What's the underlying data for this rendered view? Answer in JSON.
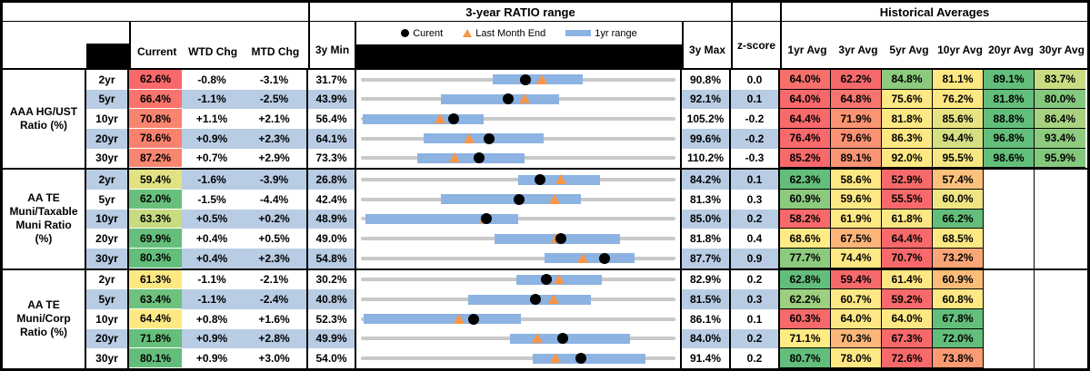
{
  "header": {
    "chart_title": "3-year RATIO range",
    "historical_title": "Historical Averages",
    "col_current": "Current",
    "col_wtd": "WTD Chg",
    "col_mtd": "MTD Chg",
    "col_min": "3y Min",
    "col_max": "3y Max",
    "col_z": "z-score",
    "legend_current": "Curent",
    "legend_last_month": "Last Month End",
    "legend_range": "1yr range",
    "avg_cols": [
      "1yr Avg",
      "3yr Avg",
      "5yr Avg",
      "10yr Avg",
      "20yr Avg",
      "30yr Avg"
    ]
  },
  "colors": {
    "stripe_blue": "#b8cce4",
    "range_bar_blue": "#8db3e2",
    "track_gray": "#c9c9c9",
    "triangle_orange": "#f79646",
    "dot_black": "#000000",
    "heat_red": "#f8696b",
    "heat_yellow": "#ffeb84",
    "heat_green": "#63be7b"
  },
  "groups": [
    {
      "label": "AAA HG/UST\nRatio (%)",
      "rows": [
        {
          "tenor": "2yr",
          "current": "62.6%",
          "cur_bg": "#f8696b",
          "wtd": "-0.8%",
          "mtd": "-3.1%",
          "min": "31.7%",
          "max": "90.8%",
          "z": "0.0",
          "bar_lo": 42,
          "bar_hi": 70.5,
          "dot": 52.3,
          "tri": 57.5,
          "avgs": [
            {
              "v": "64.0%",
              "bg": "#f8706c"
            },
            {
              "v": "62.2%",
              "bg": "#f8696b"
            },
            {
              "v": "84.8%",
              "bg": "#8cca7e"
            },
            {
              "v": "81.1%",
              "bg": "#fee883"
            },
            {
              "v": "89.1%",
              "bg": "#63be7b"
            },
            {
              "v": "83.7%",
              "bg": "#c9dc81"
            }
          ]
        },
        {
          "tenor": "5yr",
          "current": "66.4%",
          "cur_bg": "#f8746d",
          "wtd": "-1.1%",
          "mtd": "-2.5%",
          "min": "43.9%",
          "max": "92.1%",
          "z": "0.1",
          "bar_lo": 25.5,
          "bar_hi": 63,
          "dot": 46.7,
          "tri": 51.9,
          "avgs": [
            {
              "v": "64.0%",
              "bg": "#f8696b"
            },
            {
              "v": "64.8%",
              "bg": "#f8746d"
            },
            {
              "v": "75.6%",
              "bg": "#fee883"
            },
            {
              "v": "76.2%",
              "bg": "#fce883"
            },
            {
              "v": "81.8%",
              "bg": "#63be7b"
            },
            {
              "v": "80.0%",
              "bg": "#84c87d"
            }
          ]
        },
        {
          "tenor": "10yr",
          "current": "70.8%",
          "cur_bg": "#f9846f",
          "wtd": "+1.1%",
          "mtd": "+2.1%",
          "min": "56.4%",
          "max": "105.2%",
          "z": "-0.2",
          "bar_lo": 0.5,
          "bar_hi": 39,
          "dot": 29.5,
          "tri": 25.2,
          "avgs": [
            {
              "v": "64.4%",
              "bg": "#f8696b"
            },
            {
              "v": "71.9%",
              "bg": "#fa9473"
            },
            {
              "v": "81.8%",
              "bg": "#fee883"
            },
            {
              "v": "85.6%",
              "bg": "#e7e382"
            },
            {
              "v": "88.8%",
              "bg": "#63be7b"
            },
            {
              "v": "86.4%",
              "bg": "#a9d27f"
            }
          ]
        },
        {
          "tenor": "20yr",
          "current": "78.6%",
          "cur_bg": "#f9826f",
          "wtd": "+0.9%",
          "mtd": "+2.3%",
          "min": "64.1%",
          "max": "99.6%",
          "z": "-0.2",
          "bar_lo": 20,
          "bar_hi": 58,
          "dot": 40.8,
          "tri": 34.4,
          "avgs": [
            {
              "v": "76.4%",
              "bg": "#f8696b"
            },
            {
              "v": "79.6%",
              "bg": "#fa9172"
            },
            {
              "v": "86.3%",
              "bg": "#fee883"
            },
            {
              "v": "94.4%",
              "bg": "#d3df81"
            },
            {
              "v": "96.8%",
              "bg": "#63be7b"
            },
            {
              "v": "93.4%",
              "bg": "#8fcb7e"
            }
          ]
        },
        {
          "tenor": "30yr",
          "current": "87.2%",
          "cur_bg": "#f98670",
          "wtd": "+0.7%",
          "mtd": "+2.9%",
          "min": "73.3%",
          "max": "110.2%",
          "z": "-0.3",
          "bar_lo": 18,
          "bar_hi": 52,
          "dot": 37.7,
          "tri": 29.8,
          "avgs": [
            {
              "v": "85.2%",
              "bg": "#f8696b"
            },
            {
              "v": "89.1%",
              "bg": "#fa9473"
            },
            {
              "v": "92.0%",
              "bg": "#fee883"
            },
            {
              "v": "95.5%",
              "bg": "#f5e783"
            },
            {
              "v": "98.6%",
              "bg": "#63be7b"
            },
            {
              "v": "95.9%",
              "bg": "#84c87d"
            }
          ]
        }
      ]
    },
    {
      "label": "AA TE\nMuni/Taxable\nMuni Ratio\n(%)",
      "rows": [
        {
          "tenor": "2yr",
          "current": "59.4%",
          "cur_bg": "#e0e283",
          "wtd": "-1.6%",
          "mtd": "-3.9%",
          "min": "26.8%",
          "max": "84.2%",
          "z": "0.1",
          "bar_lo": 50,
          "bar_hi": 76,
          "dot": 56.8,
          "tri": 63.6,
          "avgs": [
            {
              "v": "62.3%",
              "bg": "#63be7b"
            },
            {
              "v": "58.6%",
              "bg": "#fee883"
            },
            {
              "v": "52.9%",
              "bg": "#f8696b"
            },
            {
              "v": "57.4%",
              "bg": "#fcc17c"
            },
            null,
            null
          ]
        },
        {
          "tenor": "5yr",
          "current": "62.0%",
          "cur_bg": "#68c07c",
          "wtd": "-1.5%",
          "mtd": "-4.4%",
          "min": "42.4%",
          "max": "81.3%",
          "z": "0.3",
          "bar_lo": 25.5,
          "bar_hi": 70,
          "dot": 50.4,
          "tri": 61.7,
          "avgs": [
            {
              "v": "60.9%",
              "bg": "#8cca7e"
            },
            {
              "v": "59.6%",
              "bg": "#fee883"
            },
            {
              "v": "55.5%",
              "bg": "#f8696b"
            },
            {
              "v": "60.0%",
              "bg": "#f0e583"
            },
            null,
            null
          ]
        },
        {
          "tenor": "10yr",
          "current": "63.3%",
          "cur_bg": "#c7db81",
          "wtd": "+0.5%",
          "mtd": "+0.2%",
          "min": "48.9%",
          "max": "85.0%",
          "z": "0.2",
          "bar_lo": 1.5,
          "bar_hi": 50,
          "dot": 39.9,
          "tri": 39.3,
          "avgs": [
            {
              "v": "58.2%",
              "bg": "#f8696b"
            },
            {
              "v": "61.9%",
              "bg": "#fee883"
            },
            {
              "v": "61.8%",
              "bg": "#fbe783"
            },
            {
              "v": "66.2%",
              "bg": "#63be7b"
            },
            null,
            null
          ]
        },
        {
          "tenor": "20yr",
          "current": "69.9%",
          "cur_bg": "#65bf7b",
          "wtd": "+0.4%",
          "mtd": "+0.5%",
          "min": "49.0%",
          "max": "81.8%",
          "z": "0.4",
          "bar_lo": 42.5,
          "bar_hi": 82.5,
          "dot": 63.7,
          "tri": 62.2,
          "avgs": [
            {
              "v": "68.6%",
              "bg": "#ffeb84"
            },
            {
              "v": "67.5%",
              "bg": "#fcb479"
            },
            {
              "v": "64.4%",
              "bg": "#f8696b"
            },
            {
              "v": "68.5%",
              "bg": "#fee883"
            },
            null,
            null
          ]
        },
        {
          "tenor": "30yr",
          "current": "80.3%",
          "cur_bg": "#63be7b",
          "wtd": "+0.4%",
          "mtd": "+2.3%",
          "min": "54.8%",
          "max": "87.7%",
          "z": "0.9",
          "bar_lo": 58.5,
          "bar_hi": 87,
          "dot": 77.5,
          "tri": 70.5,
          "avgs": [
            {
              "v": "77.7%",
              "bg": "#8cca7e"
            },
            {
              "v": "74.4%",
              "bg": "#fee883"
            },
            {
              "v": "70.7%",
              "bg": "#f8696b"
            },
            {
              "v": "73.2%",
              "bg": "#fba676"
            },
            null,
            null
          ]
        }
      ]
    },
    {
      "label": "AA TE\nMuni/Corp\nRatio (%)",
      "rows": [
        {
          "tenor": "2yr",
          "current": "61.3%",
          "cur_bg": "#fde884",
          "wtd": "-1.1%",
          "mtd": "-2.1%",
          "min": "30.2%",
          "max": "82.9%",
          "z": "0.2",
          "bar_lo": 49.5,
          "bar_hi": 76.5,
          "dot": 59.0,
          "tri": 63.0,
          "avgs": [
            {
              "v": "62.8%",
              "bg": "#63be7b"
            },
            {
              "v": "59.4%",
              "bg": "#f8696b"
            },
            {
              "v": "61.4%",
              "bg": "#fee883"
            },
            {
              "v": "60.9%",
              "bg": "#fcbd7b"
            },
            null,
            null
          ]
        },
        {
          "tenor": "5yr",
          "current": "63.4%",
          "cur_bg": "#6ec27d",
          "wtd": "-1.1%",
          "mtd": "-2.4%",
          "min": "40.8%",
          "max": "81.5%",
          "z": "0.3",
          "bar_lo": 34,
          "bar_hi": 73,
          "dot": 55.5,
          "tri": 61.4,
          "avgs": [
            {
              "v": "62.2%",
              "bg": "#9ccf7f"
            },
            {
              "v": "60.7%",
              "bg": "#fee883"
            },
            {
              "v": "59.2%",
              "bg": "#f8696b"
            },
            {
              "v": "60.8%",
              "bg": "#fde883"
            },
            null,
            null
          ]
        },
        {
          "tenor": "10yr",
          "current": "64.4%",
          "cur_bg": "#fde884",
          "wtd": "+0.8%",
          "mtd": "+1.6%",
          "min": "52.3%",
          "max": "86.1%",
          "z": "0.1",
          "bar_lo": 1,
          "bar_hi": 51,
          "dot": 35.8,
          "tri": 31.1,
          "avgs": [
            {
              "v": "60.3%",
              "bg": "#f8696b"
            },
            {
              "v": "64.0%",
              "bg": "#ffe883"
            },
            {
              "v": "64.0%",
              "bg": "#fee883"
            },
            {
              "v": "67.8%",
              "bg": "#63be7b"
            },
            null,
            null
          ]
        },
        {
          "tenor": "20yr",
          "current": "71.8%",
          "cur_bg": "#66bf7b",
          "wtd": "+0.9%",
          "mtd": "+2.8%",
          "min": "49.9%",
          "max": "84.0%",
          "z": "0.2",
          "bar_lo": 47.5,
          "bar_hi": 85.5,
          "dot": 64.2,
          "tri": 56.0,
          "avgs": [
            {
              "v": "71.1%",
              "bg": "#ffeb84"
            },
            {
              "v": "70.3%",
              "bg": "#fcb679"
            },
            {
              "v": "67.3%",
              "bg": "#f8696b"
            },
            {
              "v": "72.0%",
              "bg": "#63be7b"
            },
            null,
            null
          ]
        },
        {
          "tenor": "30yr",
          "current": "80.1%",
          "cur_bg": "#63be7b",
          "wtd": "+0.9%",
          "mtd": "+3.0%",
          "min": "54.0%",
          "max": "91.4%",
          "z": "0.2",
          "bar_lo": 54.5,
          "bar_hi": 90.5,
          "dot": 69.8,
          "tri": 61.8,
          "avgs": [
            {
              "v": "80.7%",
              "bg": "#63be7b"
            },
            {
              "v": "78.0%",
              "bg": "#fee883"
            },
            {
              "v": "72.6%",
              "bg": "#f8696b"
            },
            {
              "v": "73.8%",
              "bg": "#fb9b74"
            },
            null,
            null
          ]
        }
      ]
    }
  ],
  "chart_data": {
    "type": "table",
    "title": "3-year RATIO range",
    "note": "Each row: black dot = Curent value, orange triangle = Last Month End, blue bar = 1yr range, gray track spans 3y Min to 3y Max",
    "sections": [
      {
        "name": "AAA HG/UST Ratio (%)",
        "tenors": [
          "2yr",
          "5yr",
          "10yr",
          "20yr",
          "30yr"
        ],
        "current": [
          62.6,
          66.4,
          70.8,
          78.6,
          87.2
        ],
        "wtd_chg": [
          -0.8,
          -1.1,
          1.1,
          0.9,
          0.7
        ],
        "mtd_chg": [
          -3.1,
          -2.5,
          2.1,
          2.3,
          2.9
        ],
        "min_3y": [
          31.7,
          43.9,
          56.4,
          64.1,
          73.3
        ],
        "max_3y": [
          90.8,
          92.1,
          105.2,
          99.6,
          110.2
        ],
        "z_score": [
          0.0,
          0.1,
          -0.2,
          -0.2,
          -0.3
        ],
        "avg_1yr": [
          64.0,
          64.0,
          64.4,
          76.4,
          85.2
        ],
        "avg_3yr": [
          62.2,
          64.8,
          71.9,
          79.6,
          89.1
        ],
        "avg_5yr": [
          84.8,
          75.6,
          81.8,
          86.3,
          92.0
        ],
        "avg_10yr": [
          81.1,
          76.2,
          85.6,
          94.4,
          95.5
        ],
        "avg_20yr": [
          89.1,
          81.8,
          88.8,
          96.8,
          98.6
        ],
        "avg_30yr": [
          83.7,
          80.0,
          86.4,
          93.4,
          95.9
        ]
      },
      {
        "name": "AA TE Muni/Taxable Muni Ratio (%)",
        "tenors": [
          "2yr",
          "5yr",
          "10yr",
          "20yr",
          "30yr"
        ],
        "current": [
          59.4,
          62.0,
          63.3,
          69.9,
          80.3
        ],
        "wtd_chg": [
          -1.6,
          -1.5,
          0.5,
          0.4,
          0.4
        ],
        "mtd_chg": [
          -3.9,
          -4.4,
          0.2,
          0.5,
          2.3
        ],
        "min_3y": [
          26.8,
          42.4,
          48.9,
          49.0,
          54.8
        ],
        "max_3y": [
          84.2,
          81.3,
          85.0,
          81.8,
          87.7
        ],
        "z_score": [
          0.1,
          0.3,
          0.2,
          0.4,
          0.9
        ],
        "avg_1yr": [
          62.3,
          60.9,
          58.2,
          68.6,
          77.7
        ],
        "avg_3yr": [
          58.6,
          59.6,
          61.9,
          67.5,
          74.4
        ],
        "avg_5yr": [
          52.9,
          55.5,
          61.8,
          64.4,
          70.7
        ],
        "avg_10yr": [
          57.4,
          60.0,
          66.2,
          68.5,
          73.2
        ],
        "avg_20yr": [
          null,
          null,
          null,
          null,
          null
        ],
        "avg_30yr": [
          null,
          null,
          null,
          null,
          null
        ]
      },
      {
        "name": "AA TE Muni/Corp Ratio (%)",
        "tenors": [
          "2yr",
          "5yr",
          "10yr",
          "20yr",
          "30yr"
        ],
        "current": [
          61.3,
          63.4,
          64.4,
          71.8,
          80.1
        ],
        "wtd_chg": [
          -1.1,
          -1.1,
          0.8,
          0.9,
          0.9
        ],
        "mtd_chg": [
          -2.1,
          -2.4,
          1.6,
          2.8,
          3.0
        ],
        "min_3y": [
          30.2,
          40.8,
          52.3,
          49.9,
          54.0
        ],
        "max_3y": [
          82.9,
          81.5,
          86.1,
          84.0,
          91.4
        ],
        "z_score": [
          0.2,
          0.3,
          0.1,
          0.2,
          0.2
        ],
        "avg_1yr": [
          62.8,
          62.2,
          60.3,
          71.1,
          80.7
        ],
        "avg_3yr": [
          59.4,
          60.7,
          64.0,
          70.3,
          78.0
        ],
        "avg_5yr": [
          61.4,
          59.2,
          64.0,
          67.3,
          72.6
        ],
        "avg_10yr": [
          60.9,
          60.8,
          67.8,
          72.0,
          73.8
        ],
        "avg_20yr": [
          null,
          null,
          null,
          null,
          null
        ],
        "avg_30yr": [
          null,
          null,
          null,
          null,
          null
        ]
      }
    ]
  }
}
